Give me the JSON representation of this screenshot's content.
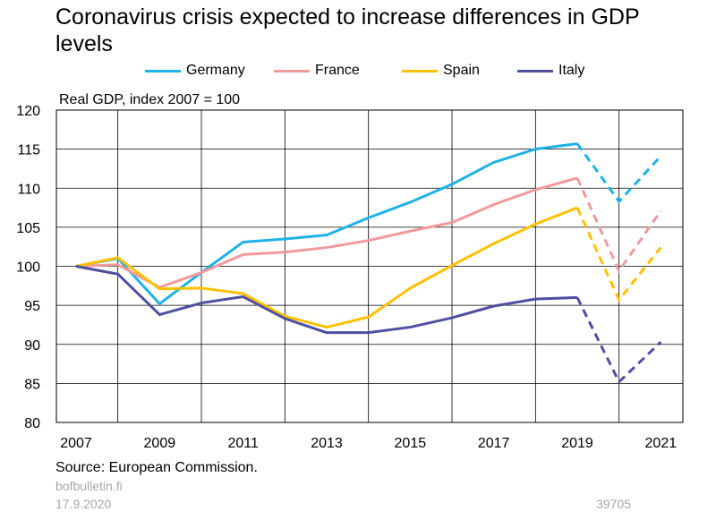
{
  "chart_data": {
    "type": "line",
    "title": "Coronavirus crisis expected to increase differences in GDP levels",
    "ylabel": "Real GDP, index 2007 = 100",
    "ylim": [
      80,
      120
    ],
    "yticks": [
      80,
      85,
      90,
      95,
      100,
      105,
      110,
      115,
      120
    ],
    "xlim": [
      2007,
      2022
    ],
    "xticks": [
      2007,
      2009,
      2011,
      2013,
      2015,
      2017,
      2019,
      2021
    ],
    "grid": true,
    "legend_position": "top",
    "x": [
      2007,
      2008,
      2009,
      2010,
      2011,
      2012,
      2013,
      2014,
      2015,
      2016,
      2017,
      2018,
      2019,
      2020,
      2021
    ],
    "forecast_from": 2019,
    "series": [
      {
        "name": "Germany",
        "color": "#1fb2e6",
        "values": [
          100,
          101,
          95.2,
          99.2,
          103.1,
          103.5,
          104,
          106.2,
          108.2,
          110.5,
          113.3,
          115,
          115.7,
          108.3,
          114.1
        ]
      },
      {
        "name": "France",
        "color": "#f2999c",
        "values": [
          100,
          100.2,
          97.3,
          99.2,
          101.5,
          101.8,
          102.4,
          103.3,
          104.5,
          105.6,
          107.9,
          109.8,
          111.3,
          99.4,
          107.1
        ]
      },
      {
        "name": "Spain",
        "color": "#ffc000",
        "values": [
          100,
          101.1,
          97.1,
          97.2,
          96.5,
          93.6,
          92.2,
          93.5,
          97.2,
          100.1,
          102.9,
          105.4,
          107.5,
          95.7,
          102.4
        ]
      },
      {
        "name": "Italy",
        "color": "#4f4fa0",
        "values": [
          100,
          99,
          93.8,
          95.3,
          96.1,
          93.3,
          91.5,
          91.5,
          92.2,
          93.4,
          94.9,
          95.8,
          96,
          85.2,
          90.3
        ]
      }
    ]
  },
  "source": "Source: European Commission.",
  "site": "bofbulletin.fi",
  "date": "17.9.2020",
  "code": "39705"
}
